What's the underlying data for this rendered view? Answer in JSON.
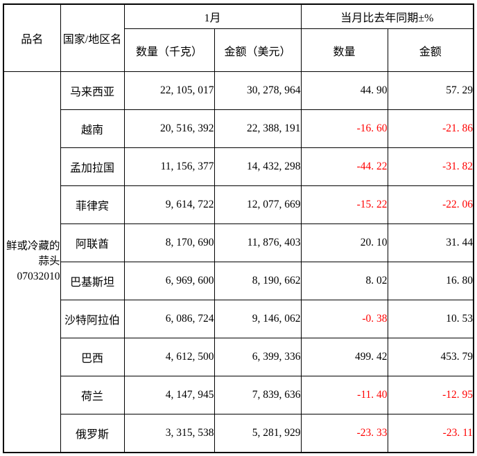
{
  "colors": {
    "negative": "#ff0000",
    "text": "#000000",
    "border": "#000000",
    "background": "#ffffff"
  },
  "header": {
    "product_col": "品名",
    "country_col": "国家/地区名",
    "month_group": "1月",
    "yoy_group": "当月比去年同期±%",
    "qty_kg": "数量（千克）",
    "amt_usd": "金额（美元）",
    "yoy_qty": "数量",
    "yoy_amt": "金额"
  },
  "product": {
    "name": "鲜或冷藏的蒜头",
    "code": "07032010"
  },
  "rows": [
    {
      "country": "马来西亚",
      "qty": "22, 105, 017",
      "amount": "30, 278, 964",
      "yoy_qty": "44. 90",
      "yoy_amount": "57. 29"
    },
    {
      "country": "越南",
      "qty": "20, 516, 392",
      "amount": "22, 388, 191",
      "yoy_qty": "-16. 60",
      "yoy_amount": "-21. 86"
    },
    {
      "country": "孟加拉国",
      "qty": "11, 156, 377",
      "amount": "14, 432, 298",
      "yoy_qty": "-44. 22",
      "yoy_amount": "-31. 82"
    },
    {
      "country": "菲律宾",
      "qty": "9, 614, 722",
      "amount": "12, 077, 669",
      "yoy_qty": "-15. 22",
      "yoy_amount": "-22. 06"
    },
    {
      "country": "阿联酋",
      "qty": "8, 170, 690",
      "amount": "11, 876, 403",
      "yoy_qty": "20. 10",
      "yoy_amount": "31. 44"
    },
    {
      "country": "巴基斯坦",
      "qty": "6, 969, 600",
      "amount": "8, 190, 662",
      "yoy_qty": "8. 02",
      "yoy_amount": "16. 80"
    },
    {
      "country": "沙特阿拉伯",
      "qty": "6, 086, 724",
      "amount": "9, 146, 062",
      "yoy_qty": "-0. 38",
      "yoy_amount": "10. 53"
    },
    {
      "country": "巴西",
      "qty": "4, 612, 500",
      "amount": "6, 399, 336",
      "yoy_qty": "499. 42",
      "yoy_amount": "453. 79"
    },
    {
      "country": "荷兰",
      "qty": "4, 147, 945",
      "amount": "7, 839, 636",
      "yoy_qty": "-11. 40",
      "yoy_amount": "-12. 95"
    },
    {
      "country": "俄罗斯",
      "qty": "3, 315, 538",
      "amount": "5, 281, 929",
      "yoy_qty": "-23. 33",
      "yoy_amount": "-23. 11"
    }
  ]
}
